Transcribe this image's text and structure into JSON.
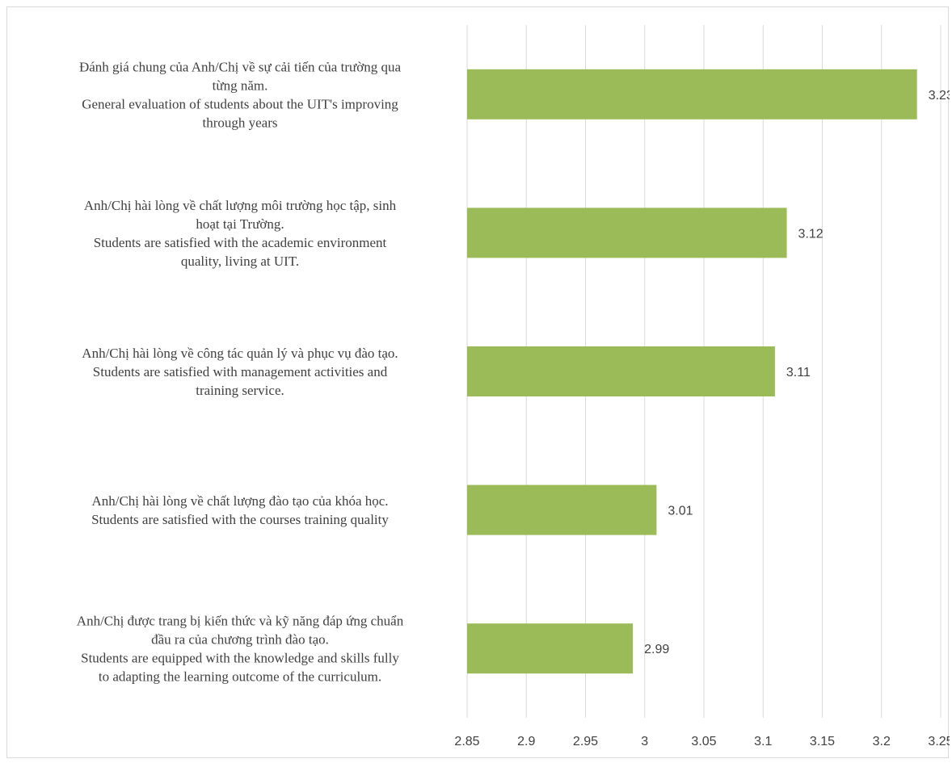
{
  "chart_data": {
    "type": "bar",
    "orientation": "horizontal",
    "title": "",
    "xlabel": "",
    "ylabel": "",
    "xlim": [
      2.85,
      3.25
    ],
    "x_ticks": [
      "2.85",
      "2.9",
      "2.95",
      "3",
      "3.05",
      "3.1",
      "3.15",
      "3.2",
      "3.25"
    ],
    "grid": true,
    "legend": "none",
    "bar_color": "#9bbb59",
    "categories": [
      {
        "lines": [
          "Đánh giá chung của Anh/Chị về sự cải tiến của trường qua",
          "từng năm.",
          "General evaluation of students about the UIT's improving",
          "through years"
        ]
      },
      {
        "lines": [
          "Anh/Chị hài lòng về chất lượng môi trường học tập, sinh",
          "hoạt tại Trường.",
          "Students are satisfied with the academic environment",
          "quality, living at UIT."
        ]
      },
      {
        "lines": [
          "Anh/Chị hài lòng về công tác quản lý và phục vụ đào tạo.",
          "Students are satisfied with management activities and",
          "training service."
        ]
      },
      {
        "lines": [
          "Anh/Chị hài lòng về chất lượng đào tạo của khóa học.",
          "Students are satisfied with the courses training quality"
        ]
      },
      {
        "lines": [
          "Anh/Chị được trang bị kiến thức và kỹ năng đáp ứng chuẩn",
          "đầu ra của chương trình đào tạo.",
          "Students are equipped with the knowledge and skills fully",
          "to adapting the learning outcome of the curriculum."
        ]
      }
    ],
    "values": [
      3.23,
      3.12,
      3.11,
      3.01,
      2.99
    ],
    "value_labels": [
      "3.23",
      "3.12",
      "3.11",
      "3.01",
      "2.99"
    ]
  }
}
